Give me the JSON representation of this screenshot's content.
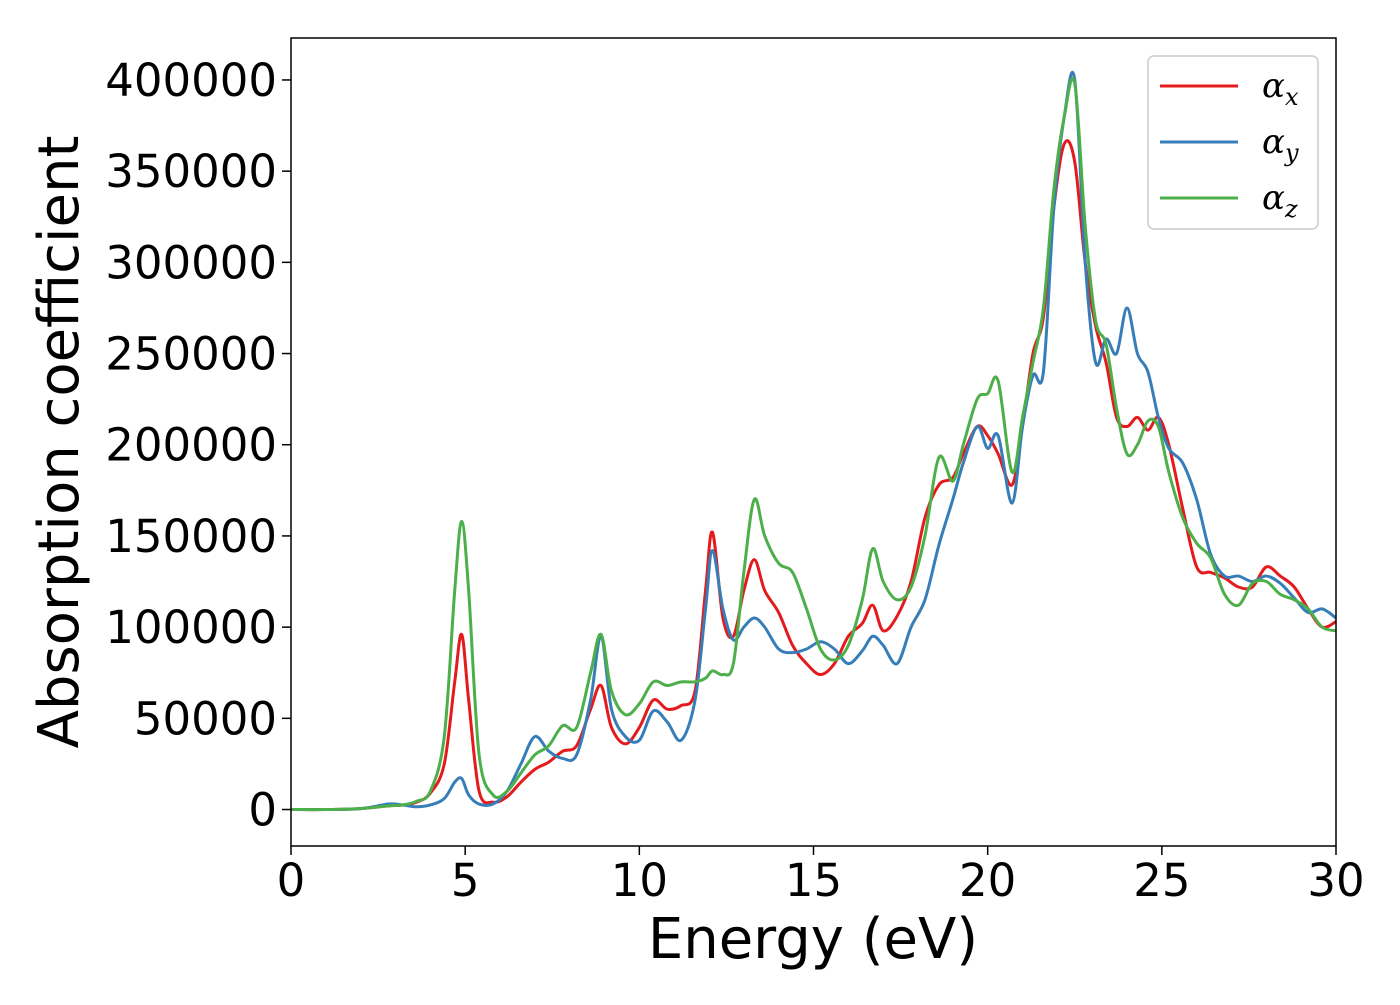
{
  "chart_data": {
    "type": "line",
    "xlabel": "Energy (eV)",
    "ylabel": "Absorption coefficient",
    "xlim": [
      0,
      30
    ],
    "ylim": [
      -20000,
      423000
    ],
    "xticks": [
      0,
      5,
      10,
      15,
      20,
      25,
      30
    ],
    "yticks": [
      0,
      50000,
      100000,
      150000,
      200000,
      250000,
      300000,
      350000,
      400000
    ],
    "grid": false,
    "legend_position": "top-right",
    "series": [
      {
        "name": "α",
        "subscript": "x",
        "color": "#e41a1c",
        "x": [
          0,
          1,
          2,
          2.8,
          3.2,
          3.6,
          4.0,
          4.4,
          4.7,
          4.9,
          5.1,
          5.4,
          5.8,
          6.2,
          6.6,
          7.0,
          7.4,
          7.8,
          8.2,
          8.6,
          8.9,
          9.2,
          9.6,
          10.0,
          10.4,
          10.8,
          11.2,
          11.6,
          11.9,
          12.1,
          12.4,
          12.7,
          13.0,
          13.3,
          13.6,
          14.0,
          14.4,
          14.8,
          15.2,
          15.6,
          16.0,
          16.4,
          16.7,
          17.0,
          17.4,
          17.8,
          18.2,
          18.6,
          19.0,
          19.3,
          19.7,
          20.0,
          20.3,
          20.7,
          21.0,
          21.3,
          21.6,
          21.9,
          22.2,
          22.5,
          22.8,
          23.1,
          23.4,
          23.7,
          24.0,
          24.3,
          24.6,
          24.9,
          25.2,
          25.6,
          26.0,
          26.4,
          26.8,
          27.2,
          27.6,
          28.0,
          28.4,
          28.8,
          29.2,
          29.6,
          30
        ],
        "y": [
          0,
          0,
          500,
          2000,
          2500,
          4000,
          9000,
          25000,
          70000,
          96000,
          60000,
          10000,
          4000,
          7000,
          15000,
          22000,
          26000,
          32000,
          35000,
          55000,
          68000,
          45000,
          36000,
          45000,
          60000,
          55000,
          57000,
          65000,
          120000,
          152000,
          105000,
          95000,
          120000,
          137000,
          120000,
          108000,
          90000,
          80000,
          74000,
          80000,
          95000,
          102000,
          112000,
          98000,
          106000,
          125000,
          160000,
          178000,
          182000,
          195000,
          210000,
          205000,
          195000,
          178000,
          210000,
          250000,
          270000,
          330000,
          365000,
          355000,
          300000,
          265000,
          245000,
          215000,
          210000,
          215000,
          208000,
          215000,
          200000,
          165000,
          133000,
          130000,
          127000,
          122000,
          122000,
          133000,
          128000,
          122000,
          110000,
          100000,
          103000
        ]
      },
      {
        "name": "α",
        "subscript": "y",
        "color": "#377eb8",
        "x": [
          0,
          1,
          2,
          2.8,
          3.2,
          3.6,
          4.0,
          4.4,
          4.7,
          4.9,
          5.1,
          5.4,
          5.8,
          6.2,
          6.6,
          7.0,
          7.4,
          7.8,
          8.2,
          8.6,
          8.9,
          9.2,
          9.6,
          10.0,
          10.4,
          10.8,
          11.2,
          11.6,
          11.9,
          12.1,
          12.4,
          12.7,
          13.0,
          13.3,
          13.6,
          14.0,
          14.4,
          14.8,
          15.2,
          15.6,
          16.0,
          16.4,
          16.7,
          17.0,
          17.4,
          17.8,
          18.2,
          18.6,
          19.0,
          19.3,
          19.7,
          20.0,
          20.3,
          20.7,
          21.0,
          21.3,
          21.6,
          21.9,
          22.2,
          22.5,
          22.8,
          23.1,
          23.4,
          23.7,
          24.0,
          24.3,
          24.6,
          24.9,
          25.2,
          25.6,
          26.0,
          26.4,
          26.8,
          27.2,
          27.6,
          28.0,
          28.4,
          28.8,
          29.2,
          29.6,
          30
        ],
        "y": [
          0,
          0,
          500,
          3000,
          2500,
          1500,
          2500,
          6000,
          15000,
          17000,
          8000,
          3000,
          3000,
          10000,
          25000,
          40000,
          32000,
          28000,
          30000,
          60000,
          95000,
          55000,
          40000,
          38000,
          54000,
          48000,
          38000,
          60000,
          110000,
          142000,
          110000,
          93000,
          100000,
          105000,
          100000,
          88000,
          86000,
          88000,
          92000,
          88000,
          80000,
          87000,
          95000,
          90000,
          80000,
          100000,
          115000,
          145000,
          170000,
          190000,
          210000,
          198000,
          205000,
          168000,
          210000,
          238000,
          240000,
          330000,
          380000,
          400000,
          300000,
          245000,
          258000,
          250000,
          275000,
          250000,
          240000,
          215000,
          198000,
          190000,
          170000,
          140000,
          128000,
          128000,
          125000,
          128000,
          124000,
          116000,
          108000,
          110000,
          105000
        ]
      },
      {
        "name": "α",
        "subscript": "z",
        "color": "#4daf4a",
        "x": [
          0,
          1,
          2,
          2.8,
          3.2,
          3.6,
          4.0,
          4.4,
          4.7,
          4.9,
          5.1,
          5.4,
          5.8,
          6.2,
          6.6,
          7.0,
          7.4,
          7.8,
          8.2,
          8.6,
          8.9,
          9.2,
          9.6,
          10.0,
          10.4,
          10.8,
          11.2,
          11.6,
          11.9,
          12.1,
          12.4,
          12.7,
          13.0,
          13.3,
          13.6,
          14.0,
          14.4,
          14.8,
          15.2,
          15.6,
          16.0,
          16.4,
          16.7,
          17.0,
          17.4,
          17.8,
          18.2,
          18.6,
          19.0,
          19.3,
          19.7,
          20.0,
          20.3,
          20.7,
          21.0,
          21.3,
          21.6,
          21.9,
          22.2,
          22.5,
          22.8,
          23.1,
          23.4,
          23.7,
          24.0,
          24.3,
          24.6,
          24.9,
          25.2,
          25.6,
          26.0,
          26.4,
          26.8,
          27.2,
          27.6,
          28.0,
          28.4,
          28.8,
          29.2,
          29.6,
          30
        ],
        "y": [
          0,
          0,
          500,
          2000,
          2500,
          4500,
          10000,
          40000,
          120000,
          158000,
          120000,
          30000,
          8000,
          10000,
          20000,
          30000,
          35000,
          46000,
          45000,
          75000,
          96000,
          65000,
          52000,
          58000,
          70000,
          68000,
          70000,
          70000,
          72000,
          76000,
          74000,
          80000,
          130000,
          170000,
          150000,
          135000,
          130000,
          110000,
          88000,
          82000,
          90000,
          115000,
          143000,
          125000,
          115000,
          122000,
          150000,
          193000,
          180000,
          200000,
          225000,
          228000,
          235000,
          185000,
          215000,
          245000,
          275000,
          340000,
          380000,
          398000,
          320000,
          268000,
          255000,
          220000,
          195000,
          200000,
          213000,
          210000,
          185000,
          160000,
          146000,
          138000,
          118000,
          112000,
          124000,
          125000,
          118000,
          115000,
          110000,
          100000,
          98000
        ]
      }
    ]
  }
}
